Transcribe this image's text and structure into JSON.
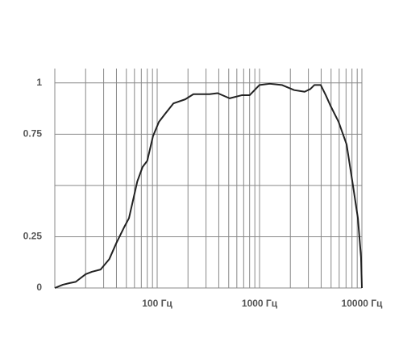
{
  "chart_data": {
    "type": "line",
    "log_x": true,
    "x": [
      10,
      12,
      14,
      16,
      20,
      23,
      28,
      34,
      40,
      48,
      53,
      64,
      72,
      80,
      91,
      104,
      120,
      144,
      188,
      226,
      325,
      390,
      510,
      670,
      800,
      1000,
      1260,
      1650,
      2180,
      2760,
      3130,
      3440,
      3960,
      4440,
      4920,
      5920,
      7090,
      8180,
      9140,
      9810,
      10000
    ],
    "series": [
      {
        "color": "#222222",
        "values": [
          0,
          0.016,
          0.024,
          0.03,
          0.067,
          0.079,
          0.09,
          0.14,
          0.22,
          0.3,
          0.34,
          0.52,
          0.59,
          0.62,
          0.74,
          0.81,
          0.85,
          0.9,
          0.92,
          0.945,
          0.945,
          0.95,
          0.925,
          0.94,
          0.94,
          0.99,
          0.996,
          0.99,
          0.965,
          0.957,
          0.97,
          0.99,
          0.99,
          0.94,
          0.89,
          0.81,
          0.7,
          0.5,
          0.34,
          0.15,
          0
        ]
      }
    ],
    "xlim": [
      10,
      10000
    ],
    "ylim": [
      0,
      1.07
    ],
    "xticks": [
      {
        "value": 100,
        "label": "100 Гц"
      },
      {
        "value": 1000,
        "label": "1000 Гц"
      },
      {
        "value": 10000,
        "label": "10000 Гц"
      }
    ],
    "yticks": [
      0,
      0.25,
      0.75,
      1
    ],
    "x_grid": [
      10,
      20,
      30,
      40,
      50,
      60,
      70,
      80,
      90,
      100,
      200,
      300,
      400,
      500,
      600,
      700,
      800,
      900,
      1000,
      2000,
      3000,
      4000,
      5000,
      6000,
      7000,
      8000,
      9000,
      10000
    ],
    "y_grid": [
      0,
      0.25,
      0.5,
      0.75,
      1
    ]
  }
}
